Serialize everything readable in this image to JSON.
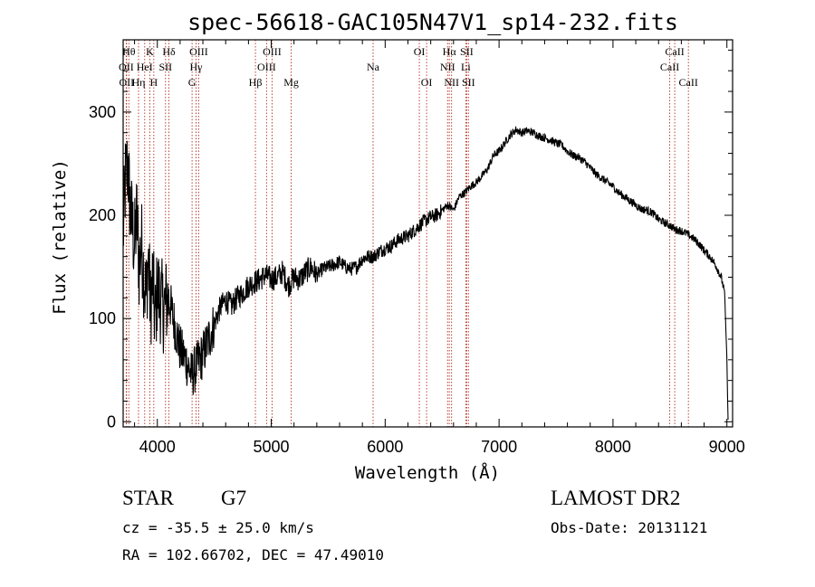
{
  "title": "spec-56618-GAC105N47V1_sp14-232.fits",
  "chart_data": {
    "type": "line",
    "xlabel": "Wavelength (Å)",
    "ylabel": "Flux (relative)",
    "xlim": [
      3700,
      9050
    ],
    "ylim": [
      -5,
      370
    ],
    "xticks": [
      "4000",
      "5000",
      "6000",
      "7000",
      "8000",
      "9000"
    ],
    "yticks": [
      "0",
      "100",
      "200",
      "300"
    ],
    "grid": false,
    "series": [
      {
        "x": [
          3700,
          3720,
          3740,
          3760,
          3780,
          3800,
          3820,
          3840,
          3860,
          3880,
          3900,
          3920,
          3940,
          3960,
          3980,
          4000,
          4050,
          4100,
          4150,
          4200,
          4250,
          4300,
          4350,
          4400,
          4450,
          4500,
          4550,
          4600,
          4650,
          4700,
          4750,
          4800,
          4850,
          4900,
          4950,
          5000,
          5050,
          5100,
          5150,
          5200,
          5250,
          5300,
          5350,
          5400,
          5450,
          5500,
          5550,
          5600,
          5650,
          5700,
          5750,
          5800,
          5850,
          5900,
          5950,
          6000,
          6050,
          6100,
          6150,
          6200,
          6250,
          6300,
          6350,
          6400,
          6450,
          6500,
          6550,
          6600,
          6650,
          6700,
          6750,
          6800,
          6850,
          6900,
          6950,
          7000,
          7050,
          7100,
          7150,
          7200,
          7250,
          7300,
          7350,
          7400,
          7450,
          7500,
          7550,
          7600,
          7650,
          7700,
          7750,
          7800,
          7850,
          7900,
          7950,
          8000,
          8050,
          8100,
          8150,
          8200,
          8250,
          8300,
          8350,
          8400,
          8450,
          8500,
          8550,
          8600,
          8650,
          8700,
          8750,
          8800,
          8850,
          8900,
          8950,
          8980,
          9000,
          9010
        ],
        "y": [
          180,
          235,
          250,
          210,
          190,
          170,
          200,
          150,
          175,
          145,
          120,
          160,
          110,
          140,
          95,
          130,
          110,
          120,
          95,
          70,
          60,
          45,
          55,
          65,
          80,
          95,
          110,
          118,
          112,
          120,
          125,
          132,
          135,
          138,
          142,
          138,
          140,
          145,
          132,
          140,
          138,
          145,
          150,
          142,
          148,
          150,
          152,
          155,
          150,
          148,
          150,
          158,
          160,
          160,
          165,
          168,
          170,
          175,
          178,
          180,
          185,
          190,
          195,
          198,
          200,
          205,
          210,
          205,
          218,
          222,
          228,
          232,
          238,
          245,
          258,
          262,
          270,
          278,
          283,
          280,
          282,
          280,
          277,
          275,
          273,
          270,
          268,
          262,
          258,
          256,
          252,
          246,
          240,
          236,
          232,
          228,
          222,
          218,
          214,
          210,
          206,
          205,
          202,
          196,
          193,
          190,
          186,
          185,
          182,
          178,
          173,
          166,
          160,
          152,
          140,
          125,
          60,
          2
        ]
      }
    ],
    "lines": [
      {
        "label": "Hθ",
        "x": 3750,
        "row": 1
      },
      {
        "label": "OII",
        "x": 3727,
        "row": 2
      },
      {
        "label": "OII",
        "x": 3730,
        "row": 3
      },
      {
        "label": "K",
        "x": 3934,
        "row": 1
      },
      {
        "label": "HeI",
        "x": 3889,
        "row": 2
      },
      {
        "label": "Hη",
        "x": 3835,
        "row": 3
      },
      {
        "label": "H",
        "x": 3969,
        "row": 3
      },
      {
        "label": "SII",
        "x": 4072,
        "row": 2
      },
      {
        "label": "Hδ",
        "x": 4102,
        "row": 1
      },
      {
        "label": "OIII",
        "x": 4363,
        "row": 1
      },
      {
        "label": "Hγ",
        "x": 4340,
        "row": 2
      },
      {
        "label": "G",
        "x": 4305,
        "row": 3
      },
      {
        "label": "Hβ",
        "x": 4861,
        "row": 3
      },
      {
        "label": "OIII",
        "x": 4959,
        "row": 2
      },
      {
        "label": "OIII",
        "x": 5007,
        "row": 1
      },
      {
        "label": "Mg",
        "x": 5175,
        "row": 3
      },
      {
        "label": "Na",
        "x": 5894,
        "row": 2
      },
      {
        "label": "OI",
        "x": 6300,
        "row": 1
      },
      {
        "label": "OI",
        "x": 6364,
        "row": 3
      },
      {
        "label": "Hα",
        "x": 6563,
        "row": 1
      },
      {
        "label": "NII",
        "x": 6548,
        "row": 2
      },
      {
        "label": "NII",
        "x": 6583,
        "row": 3
      },
      {
        "label": "SII",
        "x": 6716,
        "row": 1
      },
      {
        "label": "Li",
        "x": 6708,
        "row": 2
      },
      {
        "label": "SII",
        "x": 6731,
        "row": 3
      },
      {
        "label": "CaII",
        "x": 8542,
        "row": 1
      },
      {
        "label": "CaII",
        "x": 8498,
        "row": 2
      },
      {
        "label": "CaII",
        "x": 8662,
        "row": 3
      }
    ]
  },
  "info": {
    "class": "STAR",
    "subclass": "G7",
    "survey": "LAMOST DR2",
    "cz": "cz = -35.5 ± 25.0 km/s",
    "obs_date": "Obs-Date: 20131121",
    "radec": "RA = 102.66702, DEC =  47.49010"
  },
  "colors": {
    "spectrum": "#000000",
    "line_markers": "#b03020"
  }
}
